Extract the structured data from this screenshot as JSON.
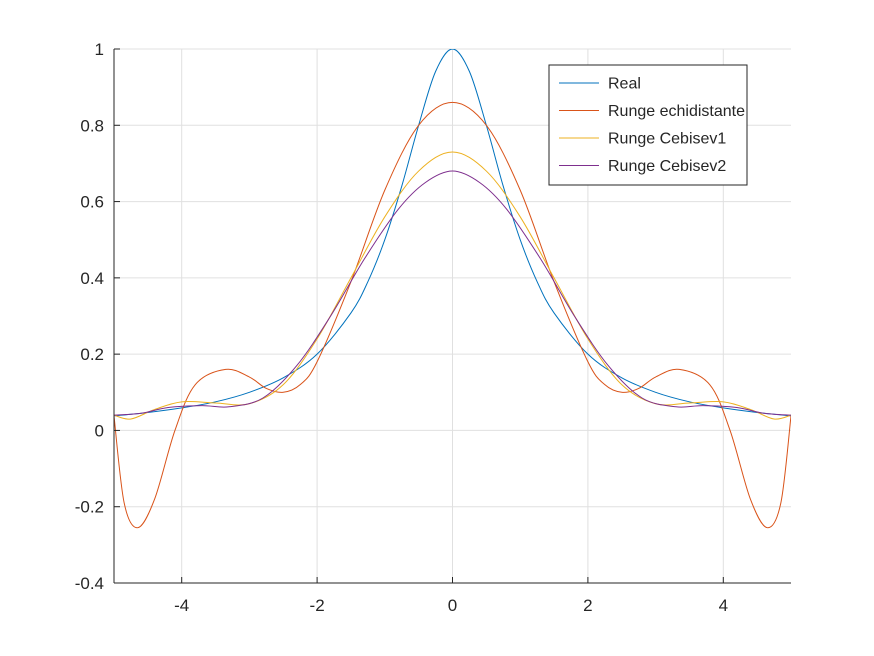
{
  "chart_data": {
    "type": "line",
    "title": "",
    "xlabel": "",
    "ylabel": "",
    "xlim": [
      -5,
      5
    ],
    "ylim": [
      -0.4,
      1
    ],
    "xticks": [
      -4,
      -2,
      0,
      2,
      4
    ],
    "yticks": [
      -0.4,
      -0.2,
      0,
      0.2,
      0.4,
      0.6,
      0.8,
      1
    ],
    "xtick_labels": [
      "-4",
      "-2",
      "0",
      "2",
      "4"
    ],
    "ytick_labels": [
      "-0.4",
      "-0.2",
      "0",
      "0.2",
      "0.4",
      "0.6",
      "0.8",
      "1"
    ],
    "grid": true,
    "legend_position": "top-right",
    "series": [
      {
        "name": "Real",
        "color": "#0072bd",
        "x": [
          -5,
          -4.5,
          -4,
          -3.5,
          -3,
          -2.5,
          -2,
          -1.5,
          -1.25,
          -1,
          -0.75,
          -0.5,
          -0.25,
          0,
          0.25,
          0.5,
          0.75,
          1,
          1.25,
          1.5,
          2,
          2.5,
          3,
          3.5,
          4,
          4.5,
          5
        ],
        "y": [
          0.038,
          0.047,
          0.059,
          0.075,
          0.1,
          0.138,
          0.2,
          0.308,
          0.39,
          0.5,
          0.64,
          0.8,
          0.941,
          1,
          0.941,
          0.8,
          0.64,
          0.5,
          0.39,
          0.308,
          0.2,
          0.138,
          0.1,
          0.075,
          0.059,
          0.047,
          0.038
        ]
      },
      {
        "name": "Runge echidistante",
        "color": "#d95319",
        "x": [
          -5,
          -4.85,
          -4.65,
          -4.4,
          -4.1,
          -3.8,
          -3.35,
          -3,
          -2.75,
          -2.5,
          -2.25,
          -2,
          -1.5,
          -1,
          -0.5,
          0,
          0.5,
          1,
          1.5,
          2,
          2.25,
          2.5,
          2.75,
          3,
          3.35,
          3.8,
          4.1,
          4.4,
          4.65,
          4.85,
          5
        ],
        "y": [
          0.038,
          -0.19,
          -0.255,
          -0.18,
          0.0,
          0.12,
          0.16,
          0.14,
          0.11,
          0.1,
          0.12,
          0.18,
          0.39,
          0.63,
          0.8,
          0.86,
          0.8,
          0.63,
          0.39,
          0.18,
          0.12,
          0.1,
          0.11,
          0.14,
          0.16,
          0.12,
          0.0,
          -0.18,
          -0.255,
          -0.19,
          0.038
        ]
      },
      {
        "name": "Runge Cebisev1",
        "color": "#edb120",
        "x": [
          -5,
          -4.75,
          -4.4,
          -4,
          -3.5,
          -3,
          -2.5,
          -2,
          -1.5,
          -1,
          -0.5,
          0,
          0.5,
          1,
          1.5,
          2,
          2.5,
          3,
          3.5,
          4,
          4.4,
          4.75,
          5
        ],
        "y": [
          0.04,
          0.03,
          0.055,
          0.075,
          0.072,
          0.07,
          0.12,
          0.24,
          0.4,
          0.56,
          0.68,
          0.73,
          0.68,
          0.56,
          0.4,
          0.24,
          0.12,
          0.07,
          0.072,
          0.075,
          0.055,
          0.03,
          0.04
        ]
      },
      {
        "name": "Runge Cebisev2",
        "color": "#7e2f8e",
        "x": [
          -5,
          -4.6,
          -4.2,
          -3.7,
          -3.3,
          -2.8,
          -2.3,
          -1.8,
          -1.3,
          -0.8,
          -0.4,
          0,
          0.4,
          0.8,
          1.3,
          1.8,
          2.3,
          2.8,
          3.3,
          3.7,
          4.2,
          4.6,
          5
        ],
        "y": [
          0.04,
          0.045,
          0.06,
          0.065,
          0.062,
          0.085,
          0.17,
          0.3,
          0.45,
          0.58,
          0.65,
          0.68,
          0.65,
          0.58,
          0.45,
          0.3,
          0.17,
          0.085,
          0.062,
          0.065,
          0.06,
          0.045,
          0.04
        ]
      }
    ]
  }
}
